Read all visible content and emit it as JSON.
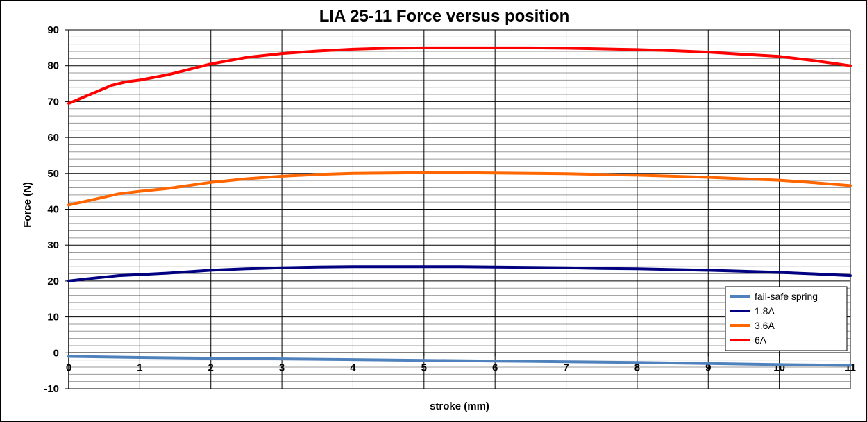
{
  "chart_data": {
    "type": "line",
    "title": "LIA 25-11 Force versus position",
    "xlabel": "stroke (mm)",
    "ylabel": "Force (N)",
    "xlim": [
      0,
      11
    ],
    "ylim": [
      -10,
      90
    ],
    "x_ticks": [
      0,
      1,
      2,
      3,
      4,
      5,
      6,
      7,
      8,
      9,
      10,
      11
    ],
    "y_ticks": [
      -10,
      0,
      10,
      20,
      30,
      40,
      50,
      60,
      70,
      80,
      90
    ],
    "y_minor_step": 2,
    "grid": true,
    "legend_position": "bottom-right",
    "series": [
      {
        "name": "fail-safe spring",
        "color": "#4f81bd",
        "x": [
          0,
          1,
          2,
          3,
          4,
          5,
          6,
          7,
          8,
          9,
          10,
          11
        ],
        "values": [
          -1.0,
          -1.3,
          -1.5,
          -1.7,
          -1.9,
          -2.1,
          -2.3,
          -2.5,
          -2.7,
          -3.0,
          -3.3,
          -3.5
        ]
      },
      {
        "name": "1.8A",
        "color": "#000080",
        "x": [
          0,
          0.3,
          0.7,
          1,
          1.4,
          2,
          2.5,
          3,
          3.5,
          4,
          4.5,
          5,
          5.5,
          6,
          6.5,
          7,
          7.5,
          8,
          8.5,
          9,
          9.5,
          10,
          10.5,
          11
        ],
        "values": [
          20.0,
          20.7,
          21.5,
          21.8,
          22.2,
          23.0,
          23.4,
          23.7,
          23.9,
          24.0,
          24.0,
          24.0,
          24.0,
          23.9,
          23.8,
          23.7,
          23.5,
          23.4,
          23.2,
          23.0,
          22.7,
          22.4,
          22.0,
          21.5
        ]
      },
      {
        "name": "3.6A",
        "color": "#ff6600",
        "x": [
          0,
          0.3,
          0.7,
          1,
          1.4,
          2,
          2.5,
          3,
          3.5,
          4,
          4.5,
          5,
          5.5,
          6,
          6.5,
          7,
          7.5,
          8,
          8.5,
          9,
          9.5,
          10,
          10.5,
          11
        ],
        "values": [
          41.2,
          42.5,
          44.3,
          45.0,
          45.8,
          47.5,
          48.5,
          49.2,
          49.7,
          50.0,
          50.1,
          50.2,
          50.2,
          50.1,
          50.0,
          49.9,
          49.7,
          49.5,
          49.2,
          48.9,
          48.5,
          48.1,
          47.4,
          46.6
        ]
      },
      {
        "name": "6A",
        "color": "#ff0000",
        "x": [
          0,
          0.3,
          0.6,
          0.8,
          1,
          1.4,
          2,
          2.5,
          3,
          3.5,
          4,
          4.5,
          5,
          5.5,
          6,
          6.5,
          7,
          7.5,
          8,
          8.5,
          9,
          9.5,
          10,
          10.5,
          11
        ],
        "values": [
          69.5,
          72.0,
          74.5,
          75.5,
          76.0,
          77.5,
          80.5,
          82.3,
          83.4,
          84.1,
          84.6,
          84.9,
          85.0,
          85.0,
          85.0,
          85.0,
          84.9,
          84.7,
          84.5,
          84.2,
          83.8,
          83.2,
          82.6,
          81.4,
          80.0
        ]
      }
    ]
  }
}
